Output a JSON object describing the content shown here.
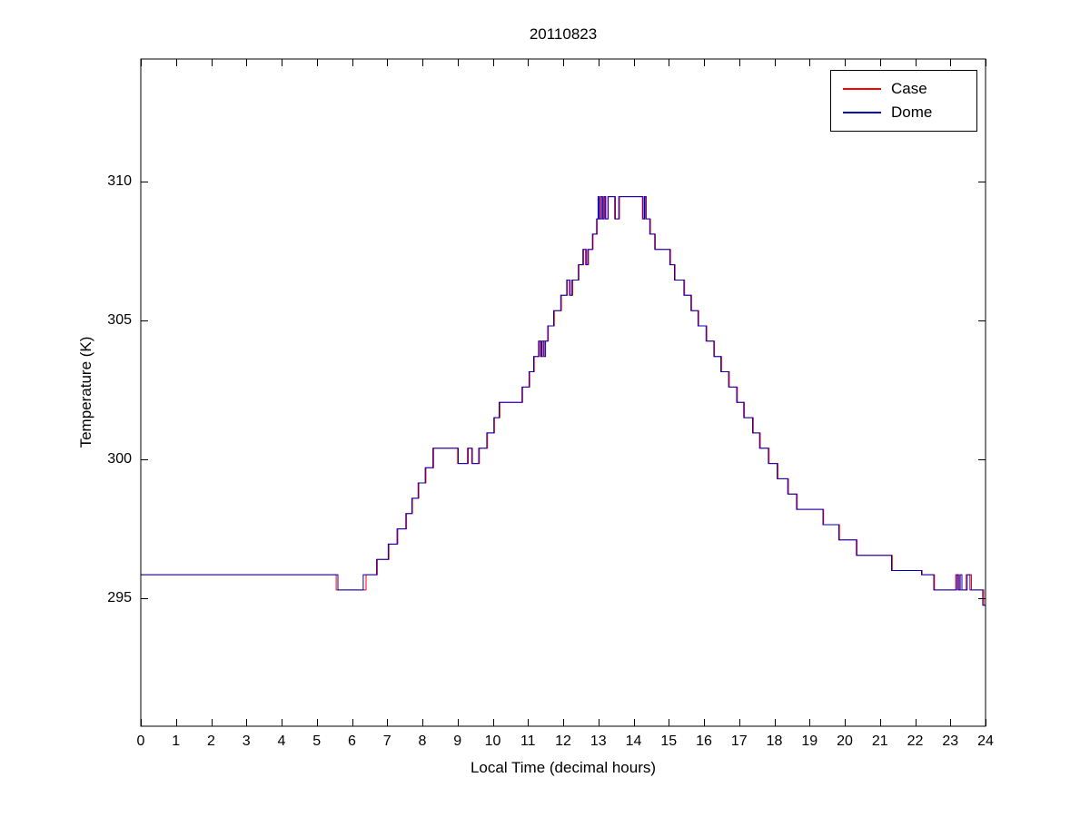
{
  "figure": {
    "title": "20110823",
    "xlabel": "Local Time (decimal hours)",
    "ylabel": "Temperature (K)"
  },
  "chart_data": {
    "type": "line",
    "line_style": "step-after",
    "title": "20110823",
    "xlabel": "Local Time (decimal hours)",
    "ylabel": "Temperature (K)",
    "xlim": [
      0,
      24
    ],
    "ylim": [
      290.4,
      314.4
    ],
    "xticks": [
      0,
      1,
      2,
      3,
      4,
      5,
      6,
      7,
      8,
      9,
      10,
      11,
      12,
      13,
      14,
      15,
      16,
      17,
      18,
      19,
      20,
      21,
      22,
      23,
      24
    ],
    "yticks": [
      295,
      300,
      305,
      310
    ],
    "grid": false,
    "legend_position": "top-right",
    "series": [
      {
        "name": "Case",
        "color": "#ff0000",
        "points": [
          [
            0.0,
            295.85
          ],
          [
            5.55,
            295.3
          ],
          [
            6.4,
            295.85
          ],
          [
            6.72,
            296.4
          ],
          [
            7.05,
            296.95
          ],
          [
            7.3,
            297.5
          ],
          [
            7.55,
            298.05
          ],
          [
            7.72,
            298.6
          ],
          [
            7.9,
            299.15
          ],
          [
            8.1,
            299.7
          ],
          [
            8.32,
            300.4
          ],
          [
            9.0,
            299.85
          ],
          [
            9.28,
            300.4
          ],
          [
            9.4,
            299.85
          ],
          [
            9.62,
            300.4
          ],
          [
            9.85,
            300.95
          ],
          [
            10.05,
            301.5
          ],
          [
            10.2,
            302.05
          ],
          [
            10.85,
            302.6
          ],
          [
            11.05,
            303.15
          ],
          [
            11.18,
            303.7
          ],
          [
            11.32,
            304.25
          ],
          [
            11.38,
            303.7
          ],
          [
            11.44,
            304.25
          ],
          [
            11.58,
            304.8
          ],
          [
            11.75,
            305.35
          ],
          [
            11.95,
            305.9
          ],
          [
            12.12,
            306.45
          ],
          [
            12.2,
            305.9
          ],
          [
            12.27,
            306.45
          ],
          [
            12.45,
            307.0
          ],
          [
            12.58,
            307.55
          ],
          [
            12.66,
            307.0
          ],
          [
            12.72,
            307.55
          ],
          [
            12.85,
            308.1
          ],
          [
            12.97,
            308.65
          ],
          [
            13.05,
            309.45
          ],
          [
            13.09,
            308.65
          ],
          [
            13.15,
            309.45
          ],
          [
            13.2,
            308.65
          ],
          [
            13.27,
            309.45
          ],
          [
            13.46,
            308.65
          ],
          [
            13.6,
            309.45
          ],
          [
            14.25,
            308.65
          ],
          [
            14.32,
            309.45
          ],
          [
            14.36,
            308.65
          ],
          [
            14.48,
            308.1
          ],
          [
            14.62,
            307.55
          ],
          [
            15.05,
            307.0
          ],
          [
            15.18,
            306.45
          ],
          [
            15.45,
            305.9
          ],
          [
            15.65,
            305.35
          ],
          [
            15.85,
            304.8
          ],
          [
            16.08,
            304.25
          ],
          [
            16.3,
            303.7
          ],
          [
            16.5,
            303.15
          ],
          [
            16.72,
            302.6
          ],
          [
            16.95,
            302.05
          ],
          [
            17.15,
            301.5
          ],
          [
            17.4,
            300.95
          ],
          [
            17.6,
            300.4
          ],
          [
            17.85,
            299.85
          ],
          [
            18.1,
            299.3
          ],
          [
            18.4,
            298.75
          ],
          [
            18.65,
            298.2
          ],
          [
            19.4,
            297.65
          ],
          [
            19.85,
            297.1
          ],
          [
            20.35,
            296.55
          ],
          [
            21.35,
            296.0
          ],
          [
            22.2,
            295.85
          ],
          [
            22.55,
            295.3
          ],
          [
            23.15,
            295.85
          ],
          [
            23.25,
            295.3
          ],
          [
            23.45,
            295.85
          ],
          [
            23.6,
            295.3
          ],
          [
            23.95,
            294.75
          ]
        ]
      },
      {
        "name": "Dome",
        "color": "#0000bf",
        "points": [
          [
            0.0,
            295.85
          ],
          [
            5.6,
            295.3
          ],
          [
            6.32,
            295.85
          ],
          [
            6.7,
            296.4
          ],
          [
            7.03,
            296.95
          ],
          [
            7.28,
            297.5
          ],
          [
            7.53,
            298.05
          ],
          [
            7.7,
            298.6
          ],
          [
            7.88,
            299.15
          ],
          [
            8.08,
            299.7
          ],
          [
            8.3,
            300.4
          ],
          [
            9.02,
            299.85
          ],
          [
            9.3,
            300.4
          ],
          [
            9.42,
            299.85
          ],
          [
            9.6,
            300.4
          ],
          [
            9.83,
            300.95
          ],
          [
            10.03,
            301.5
          ],
          [
            10.18,
            302.05
          ],
          [
            10.83,
            302.6
          ],
          [
            11.03,
            303.15
          ],
          [
            11.16,
            303.7
          ],
          [
            11.3,
            304.25
          ],
          [
            11.36,
            303.7
          ],
          [
            11.4,
            304.25
          ],
          [
            11.46,
            303.7
          ],
          [
            11.5,
            304.25
          ],
          [
            11.56,
            304.8
          ],
          [
            11.73,
            305.35
          ],
          [
            11.93,
            305.9
          ],
          [
            12.1,
            306.45
          ],
          [
            12.18,
            305.9
          ],
          [
            12.25,
            306.45
          ],
          [
            12.43,
            307.0
          ],
          [
            12.56,
            307.55
          ],
          [
            12.64,
            307.0
          ],
          [
            12.7,
            307.55
          ],
          [
            12.83,
            308.1
          ],
          [
            12.95,
            308.65
          ],
          [
            12.99,
            309.45
          ],
          [
            13.02,
            308.65
          ],
          [
            13.08,
            309.45
          ],
          [
            13.12,
            308.65
          ],
          [
            13.17,
            309.45
          ],
          [
            13.21,
            308.65
          ],
          [
            13.28,
            309.45
          ],
          [
            13.48,
            308.65
          ],
          [
            13.58,
            309.45
          ],
          [
            14.27,
            308.65
          ],
          [
            14.31,
            309.45
          ],
          [
            14.35,
            308.65
          ],
          [
            14.46,
            308.1
          ],
          [
            14.6,
            307.55
          ],
          [
            15.03,
            307.0
          ],
          [
            15.16,
            306.45
          ],
          [
            15.43,
            305.9
          ],
          [
            15.63,
            305.35
          ],
          [
            15.83,
            304.8
          ],
          [
            16.06,
            304.25
          ],
          [
            16.28,
            303.7
          ],
          [
            16.48,
            303.15
          ],
          [
            16.7,
            302.6
          ],
          [
            16.93,
            302.05
          ],
          [
            17.13,
            301.5
          ],
          [
            17.38,
            300.95
          ],
          [
            17.58,
            300.4
          ],
          [
            17.83,
            299.85
          ],
          [
            18.08,
            299.3
          ],
          [
            18.38,
            298.75
          ],
          [
            18.63,
            298.2
          ],
          [
            19.38,
            297.65
          ],
          [
            19.83,
            297.1
          ],
          [
            20.33,
            296.55
          ],
          [
            21.33,
            296.0
          ],
          [
            22.18,
            295.85
          ],
          [
            22.53,
            295.3
          ],
          [
            23.18,
            295.85
          ],
          [
            23.22,
            295.3
          ],
          [
            23.28,
            295.85
          ],
          [
            23.33,
            295.3
          ],
          [
            23.48,
            295.85
          ],
          [
            23.56,
            295.3
          ],
          [
            23.92,
            294.75
          ]
        ]
      }
    ]
  }
}
